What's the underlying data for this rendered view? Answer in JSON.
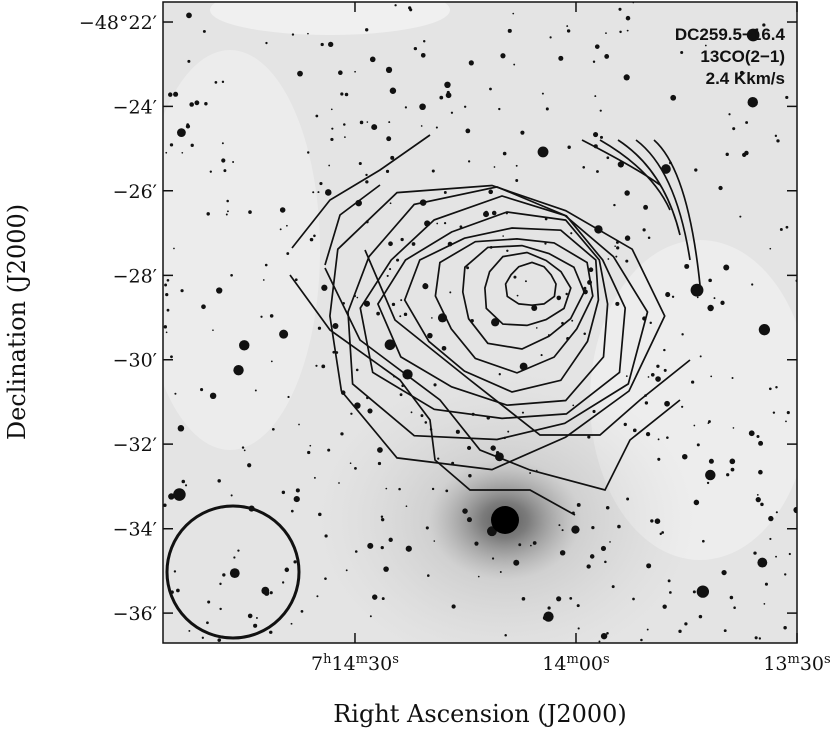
{
  "chart_data": {
    "type": "image",
    "annotation": [
      "DC259.5−16.4",
      "13CO(2−1)",
      "2.4 Kkm/s"
    ],
    "xlabel": "Right Ascension (J2000)",
    "ylabel": "Declination (J2000)",
    "xlim": [
      26096.06,
      26010
    ],
    "xticks": [
      {
        "value": 26070,
        "label": "7h14m30s"
      },
      {
        "value": 26040,
        "label": "14m00s"
      },
      {
        "value": 26010,
        "label": "13m30s"
      }
    ],
    "ylim": [
      -48.6118,
      -48.3588
    ],
    "yticks": [
      {
        "value": -48.3667,
        "label": "−48°22′"
      },
      {
        "value": -48.4,
        "label": "−24′"
      },
      {
        "value": -48.4333,
        "label": "−26′"
      },
      {
        "value": -48.4667,
        "label": "−28′"
      },
      {
        "value": -48.5,
        "label": "−30′"
      },
      {
        "value": -48.5333,
        "label": "−32′"
      },
      {
        "value": -48.5667,
        "label": "−34′"
      },
      {
        "value": -48.6,
        "label": "−36′"
      }
    ]
  }
}
